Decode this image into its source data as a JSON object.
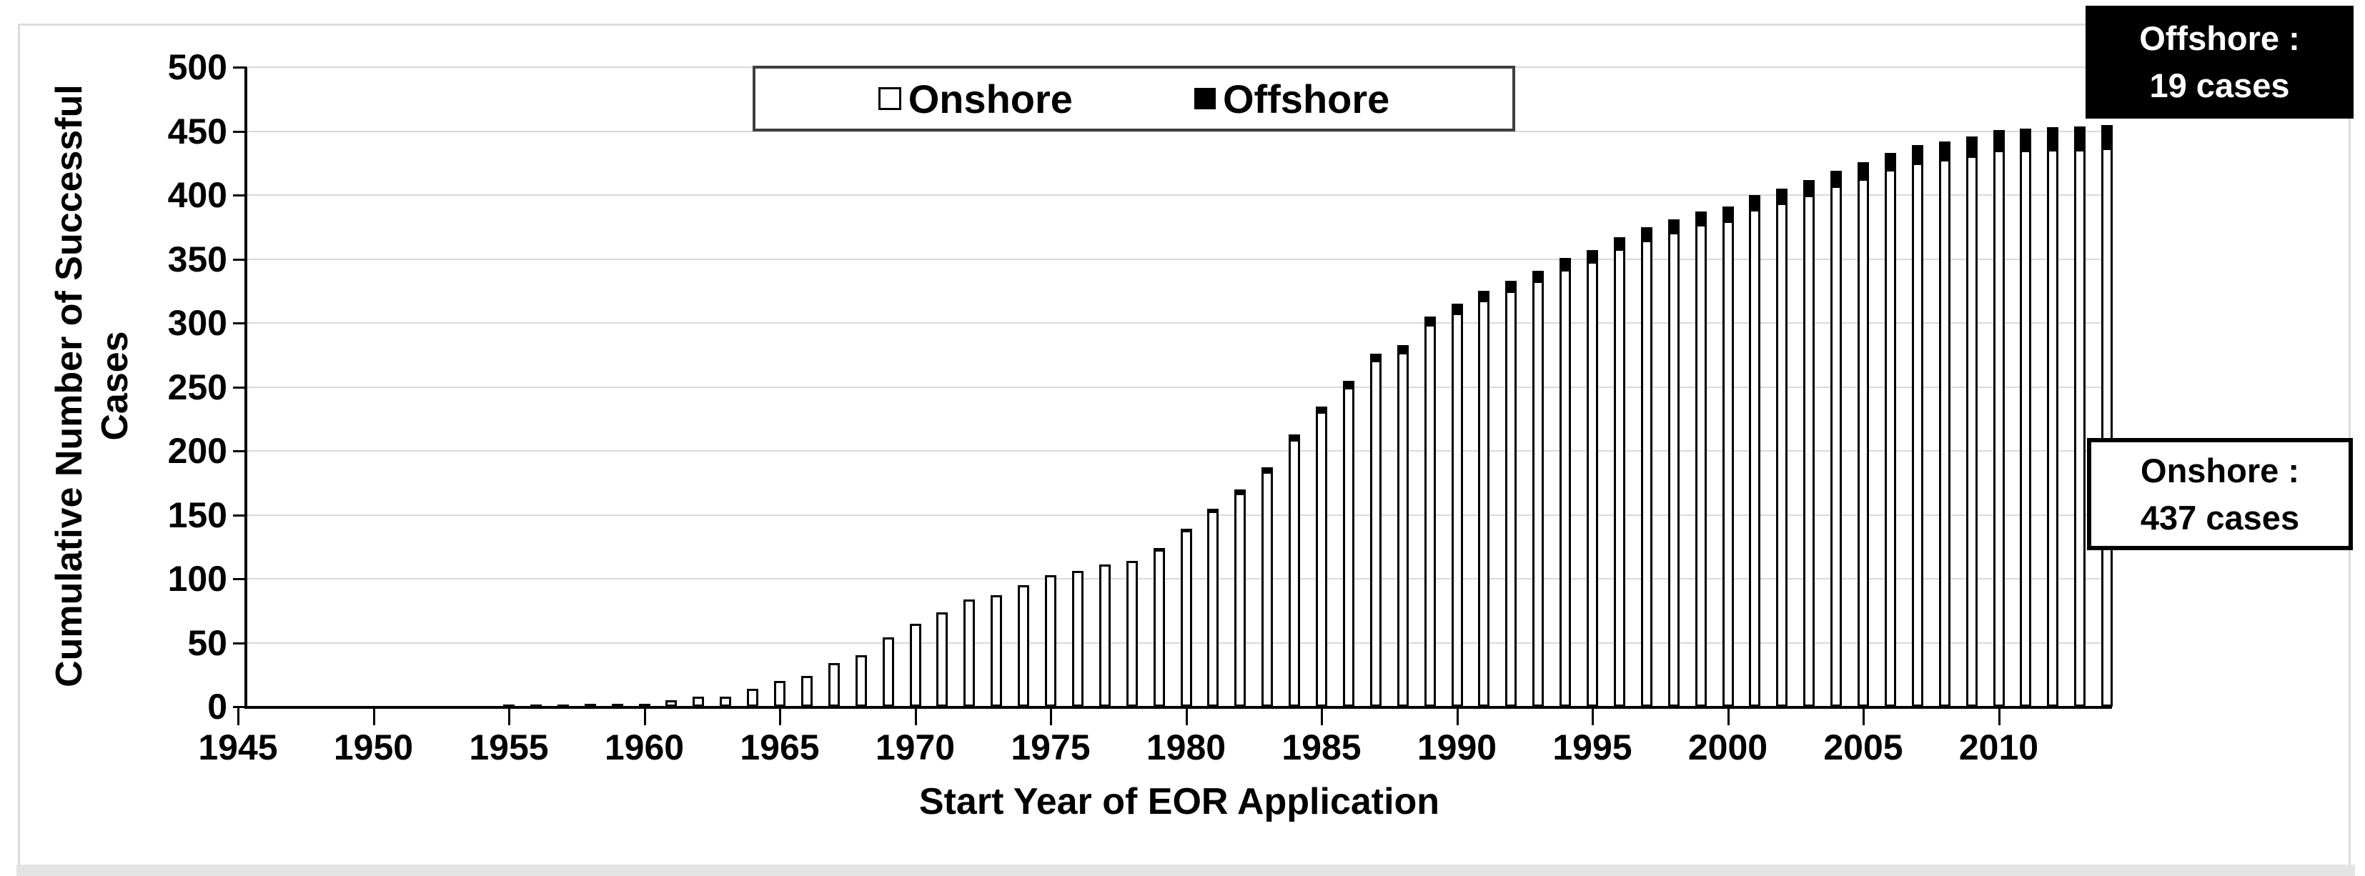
{
  "legend": {
    "onshore_label": "Onshore",
    "offshore_label": "Offshore"
  },
  "callouts": {
    "offshore_line1": "Offshore :",
    "offshore_line2": "19 cases",
    "onshore_line1": "Onshore :",
    "onshore_line2": "437 cases"
  },
  "colors": {
    "grid": "#d9d9d9",
    "axis": "#000000",
    "onshore_fill": "#ffffff",
    "offshore_fill": "#000000",
    "frame": "#dcdcdc",
    "bottom_band": "#e3e3e3"
  },
  "chart_data": {
    "type": "bar",
    "stacked": true,
    "title": "",
    "xlabel": "Start Year of EOR Application",
    "ylabel": "Cumulative Number of Successful Cases",
    "ylabel_lines": [
      "Cumulative Number of Successful",
      "Cases"
    ],
    "ylim": [
      0,
      500
    ],
    "yticks": [
      0,
      50,
      100,
      150,
      200,
      250,
      300,
      350,
      400,
      450,
      500
    ],
    "xticks": [
      1945,
      1950,
      1955,
      1960,
      1965,
      1970,
      1975,
      1980,
      1985,
      1990,
      1995,
      2000,
      2005,
      2010
    ],
    "grid": "horizontal",
    "legend_position": "top-center",
    "x": [
      1955,
      1956,
      1957,
      1958,
      1959,
      1960,
      1961,
      1962,
      1963,
      1964,
      1965,
      1966,
      1967,
      1968,
      1969,
      1970,
      1971,
      1972,
      1973,
      1974,
      1975,
      1976,
      1977,
      1978,
      1979,
      1980,
      1981,
      1982,
      1983,
      1984,
      1985,
      1986,
      1987,
      1988,
      1989,
      1990,
      1991,
      1992,
      1993,
      1994,
      1995,
      1996,
      1997,
      1998,
      1999,
      2000,
      2001,
      2002,
      2003,
      2004,
      2005,
      2006,
      2007,
      2008,
      2009,
      2010,
      2011,
      2012,
      2013,
      2014
    ],
    "series": [
      {
        "name": "Onshore",
        "fill": "#ffffff",
        "values": [
          1,
          1,
          1,
          2,
          2,
          2,
          5,
          8,
          8,
          14,
          20,
          24,
          34,
          40,
          54,
          65,
          74,
          84,
          87,
          95,
          103,
          106,
          111,
          114,
          123,
          138,
          153,
          167,
          184,
          209,
          231,
          250,
          271,
          277,
          299,
          308,
          318,
          325,
          333,
          342,
          348,
          358,
          365,
          371,
          377,
          380,
          389,
          394,
          400,
          407,
          413,
          420,
          425,
          428,
          431,
          435,
          435,
          436,
          436,
          437
        ]
      },
      {
        "name": "Offshore",
        "fill": "#000000",
        "values": [
          0,
          0,
          0,
          0,
          0,
          0,
          0,
          0,
          0,
          0,
          0,
          0,
          0,
          0,
          0,
          0,
          0,
          0,
          0,
          0,
          0,
          0,
          0,
          0,
          1,
          2,
          3,
          4,
          4,
          5,
          5,
          6,
          6,
          7,
          7,
          8,
          8,
          9,
          9,
          10,
          10,
          10,
          11,
          11,
          11,
          12,
          12,
          12,
          13,
          13,
          14,
          14,
          15,
          15,
          16,
          17,
          18,
          18,
          19,
          19
        ]
      }
    ],
    "annotations": [
      {
        "id": "offshore-callout",
        "lines": [
          "Offshore :",
          "19 cases"
        ],
        "style": "black-box"
      },
      {
        "id": "onshore-callout",
        "lines": [
          "Onshore :",
          "437 cases"
        ],
        "style": "white-box"
      }
    ]
  }
}
